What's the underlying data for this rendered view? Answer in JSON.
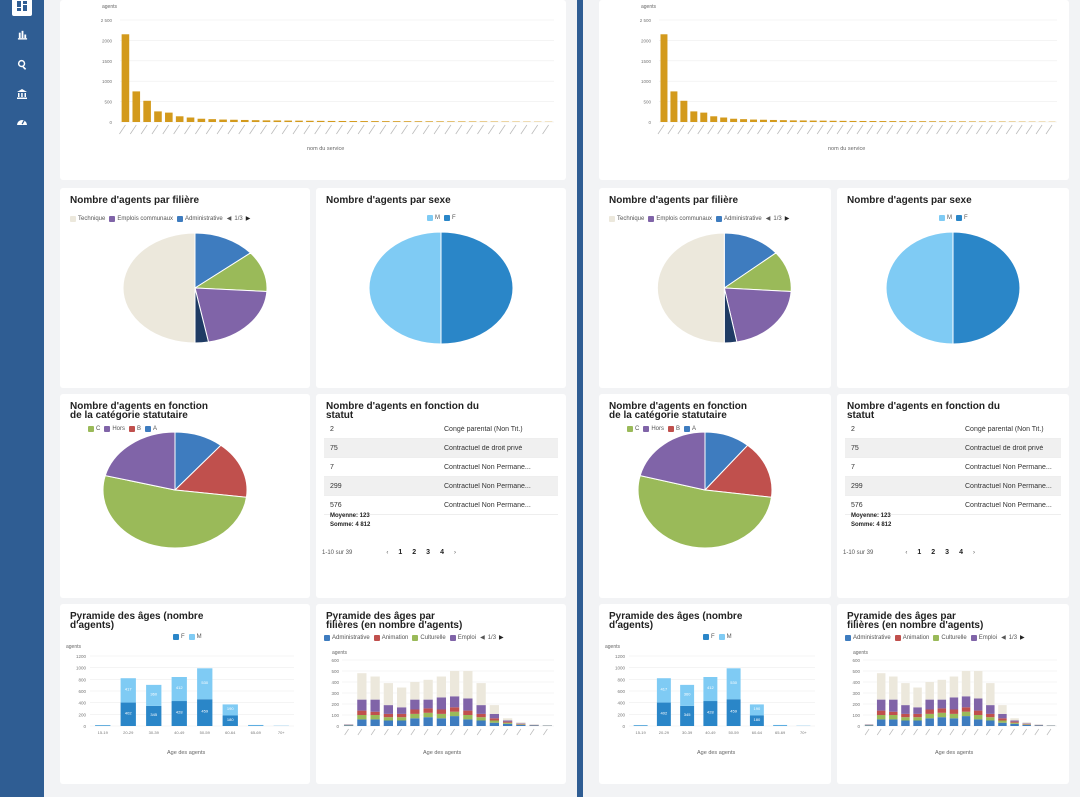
{
  "sidebar": {
    "items": [
      "dashboard-icon",
      "bar-chart-icon",
      "search-icon",
      "building-icon",
      "gauge-icon"
    ]
  },
  "colors": {
    "sidebar": "#2f5d93",
    "gold": "#d39a1c",
    "light_blue": "#7fcbf4",
    "blue": "#2a86c8"
  },
  "service_chart": {
    "ylabel": "agents",
    "xlabel": "nom du service",
    "yticks": [
      "2 500",
      "2000",
      "1500",
      "1000",
      "500",
      "0"
    ],
    "values": [
      2150,
      750,
      520,
      260,
      230,
      140,
      110,
      80,
      70,
      60,
      55,
      50,
      45,
      40,
      38,
      35,
      33,
      30,
      28,
      26,
      25,
      24,
      23,
      22,
      21,
      20,
      19,
      18,
      17,
      16,
      15,
      14,
      13,
      12,
      11,
      10,
      9,
      8,
      7,
      6
    ]
  },
  "filiere": {
    "title": "Nombre d'agents par filière",
    "legend": [
      "Technique",
      "Emplois communaux",
      "Administrative"
    ],
    "legend_colors": [
      "#ece8dc",
      "#8064a8",
      "#3e7cbf"
    ],
    "page": "1/3",
    "slices": [
      {
        "value": 14,
        "color": "#3e7cbf"
      },
      {
        "value": 12,
        "color": "#9aba59"
      },
      {
        "value": 21,
        "color": "#8064a8"
      },
      {
        "value": 3,
        "color": "#1f3b64"
      },
      {
        "value": 50,
        "color": "#ece8dc"
      }
    ]
  },
  "sexe": {
    "title": "Nombre d'agents par sexe",
    "legend": [
      "M",
      "F"
    ],
    "legend_colors": [
      "#7fcbf4",
      "#2a86c8"
    ],
    "slices": [
      {
        "value": 50,
        "color": "#2a86c8"
      },
      {
        "value": 50,
        "color": "#7fcbf4"
      }
    ]
  },
  "categorie": {
    "title1": "Nombre d'agents en fonction",
    "title2": "de la catégorie statutaire",
    "legend": [
      "C",
      "Hors",
      "B",
      "A"
    ],
    "legend_colors": [
      "#9aba59",
      "#8064a8",
      "#c0504d",
      "#3e7cbf"
    ],
    "slices": [
      {
        "value": 11,
        "color": "#3e7cbf"
      },
      {
        "value": 16,
        "color": "#c0504d"
      },
      {
        "value": 52,
        "color": "#9aba59"
      },
      {
        "value": 21,
        "color": "#8064a8"
      }
    ]
  },
  "statut": {
    "title1": "Nombre d'agents en fonction du",
    "title2": "statut",
    "rows": [
      {
        "count": "2",
        "label": "Congé parental (Non Tit.)"
      },
      {
        "count": "75",
        "label": "Contractuel de droit privé"
      },
      {
        "count": "7",
        "label": "Contractuel Non Permane..."
      },
      {
        "count": "299",
        "label": "Contractuel Non Permane..."
      },
      {
        "count": "576",
        "label": "Contractuel Non Permane..."
      }
    ],
    "moyenne": "Moyenne: 123",
    "somme": "Somme: 4 812",
    "range": "1-10 sur 39",
    "pages": [
      "1",
      "2",
      "3",
      "4"
    ],
    "prev": "‹",
    "next": "›"
  },
  "pyramide": {
    "title1": "Pyramide des âges (nombre",
    "title2": "d'agents)",
    "legend": [
      "F",
      "M"
    ],
    "ylabel": "agents",
    "xlabel": "Age des agents",
    "yticks": [
      "1200",
      "1000",
      "800",
      "600",
      "400",
      "200",
      "0"
    ],
    "categories": [
      "15-19",
      "20-29",
      "30-39",
      "40-49",
      "50-59",
      "60-64",
      "65-69",
      "70+"
    ],
    "f": [
      10,
      402,
      345,
      428,
      459,
      180,
      8,
      2
    ],
    "m": [
      5,
      417,
      360,
      412,
      530,
      190,
      10,
      3
    ]
  },
  "pyramide_filiere": {
    "title1": "Pyramide des âges par",
    "title2": "filières (en nombre d'agents)",
    "legend": [
      "Administrative",
      "Animation",
      "Culturelle",
      "Emploi"
    ],
    "legend_colors": [
      "#3e7cbf",
      "#c0504d",
      "#9aba59",
      "#8064a8"
    ],
    "page": "1/3",
    "ylabel": "agents",
    "xlabel": "Age des agents",
    "yticks": [
      "600",
      "500",
      "400",
      "300",
      "200",
      "100",
      "0"
    ],
    "stacks": [
      [
        5,
        3,
        2,
        3,
        5
      ],
      [
        60,
        40,
        40,
        100,
        240
      ],
      [
        60,
        40,
        30,
        110,
        210
      ],
      [
        50,
        30,
        30,
        80,
        200
      ],
      [
        50,
        30,
        30,
        60,
        180
      ],
      [
        70,
        40,
        40,
        90,
        160
      ],
      [
        80,
        40,
        40,
        80,
        180
      ],
      [
        70,
        40,
        40,
        110,
        190
      ],
      [
        90,
        40,
        40,
        100,
        230
      ],
      [
        60,
        40,
        40,
        110,
        250
      ],
      [
        50,
        30,
        30,
        80,
        200
      ],
      [
        30,
        20,
        20,
        40,
        80
      ],
      [
        20,
        10,
        10,
        10,
        20
      ],
      [
        10,
        5,
        5,
        5,
        10
      ],
      [
        5,
        2,
        2,
        2,
        5
      ],
      [
        3,
        1,
        1,
        1,
        3
      ]
    ],
    "stack_colors": [
      "#3e7cbf",
      "#9aba59",
      "#c0504d",
      "#8064a8",
      "#ece8dc"
    ]
  }
}
